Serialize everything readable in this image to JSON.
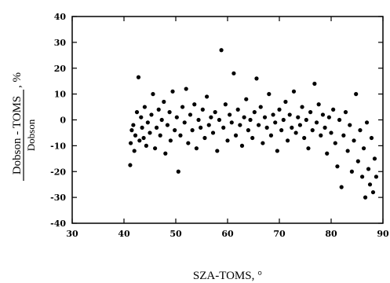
{
  "chart_data": {
    "type": "scatter",
    "xlabel": "SZA-TOMS, °",
    "ylabel": {
      "numerator": "Dobson - TOMS",
      "denominator": "Dobson",
      "unit": ", %"
    },
    "xlim": [
      30,
      90
    ],
    "ylim": [
      -40,
      40
    ],
    "x_ticks": [
      30,
      40,
      50,
      60,
      70,
      80,
      90
    ],
    "y_ticks": [
      40,
      30,
      20,
      10,
      0,
      -10,
      -20,
      -30,
      -40
    ],
    "grid": false,
    "legend": "none",
    "marker_color": "#000000",
    "series": [
      {
        "points": [
          [
            41.2,
            -17.5
          ],
          [
            41.3,
            -9
          ],
          [
            41.5,
            -4
          ],
          [
            41.8,
            -2
          ],
          [
            42,
            -12
          ],
          [
            42.2,
            -6
          ],
          [
            42.5,
            3
          ],
          [
            42.8,
            16.5
          ],
          [
            43,
            -8
          ],
          [
            43.3,
            1
          ],
          [
            43.5,
            -3
          ],
          [
            43.8,
            -7
          ],
          [
            44,
            5
          ],
          [
            44.3,
            -10
          ],
          [
            44.6,
            -1
          ],
          [
            45,
            -5
          ],
          [
            45.3,
            2
          ],
          [
            45.6,
            10
          ],
          [
            46,
            -11
          ],
          [
            46.3,
            -3
          ],
          [
            46.7,
            4
          ],
          [
            47,
            -6
          ],
          [
            47.3,
            0
          ],
          [
            47.7,
            7
          ],
          [
            48,
            -13
          ],
          [
            48.4,
            -2
          ],
          [
            48.8,
            3
          ],
          [
            49,
            -8
          ],
          [
            49.4,
            11
          ],
          [
            49.8,
            -4
          ],
          [
            50.2,
            1
          ],
          [
            50.5,
            -20
          ],
          [
            50.9,
            -6
          ],
          [
            51.3,
            5
          ],
          [
            51.7,
            -1
          ],
          [
            52,
            12
          ],
          [
            52.4,
            -9
          ],
          [
            52.8,
            2
          ],
          [
            53.2,
            -4
          ],
          [
            53.6,
            6
          ],
          [
            54,
            -11
          ],
          [
            54.4,
            0
          ],
          [
            54.8,
            -3
          ],
          [
            55.2,
            4
          ],
          [
            55.6,
            -7
          ],
          [
            56,
            9
          ],
          [
            56.4,
            -2
          ],
          [
            56.8,
            1
          ],
          [
            57.2,
            -5
          ],
          [
            57.6,
            3
          ],
          [
            58,
            -12
          ],
          [
            58.4,
            0
          ],
          [
            58.8,
            27
          ],
          [
            59.2,
            -3
          ],
          [
            59.6,
            6
          ],
          [
            60,
            -8
          ],
          [
            60.4,
            2
          ],
          [
            60.8,
            -1
          ],
          [
            61.2,
            18
          ],
          [
            61.6,
            -6
          ],
          [
            62,
            4
          ],
          [
            62.4,
            -2
          ],
          [
            62.8,
            -10
          ],
          [
            63.2,
            1
          ],
          [
            63.6,
            8
          ],
          [
            64,
            -4
          ],
          [
            64.4,
            0
          ],
          [
            64.8,
            -7
          ],
          [
            65.2,
            3
          ],
          [
            65.6,
            16
          ],
          [
            66,
            -2
          ],
          [
            66.4,
            5
          ],
          [
            66.8,
            -9
          ],
          [
            67.2,
            1
          ],
          [
            67.6,
            -3
          ],
          [
            68,
            10
          ],
          [
            68.4,
            -6
          ],
          [
            68.8,
            2
          ],
          [
            69.2,
            -1
          ],
          [
            69.6,
            -12
          ],
          [
            70,
            4
          ],
          [
            70.4,
            -4
          ],
          [
            70.8,
            0
          ],
          [
            71.2,
            7
          ],
          [
            71.6,
            -8
          ],
          [
            72,
            2
          ],
          [
            72.4,
            -3
          ],
          [
            72.8,
            11
          ],
          [
            73.2,
            -5
          ],
          [
            73.6,
            1
          ],
          [
            74,
            -2
          ],
          [
            74.4,
            5
          ],
          [
            74.8,
            -7
          ],
          [
            75.2,
            0
          ],
          [
            75.6,
            -11
          ],
          [
            76,
            3
          ],
          [
            76.4,
            -4
          ],
          [
            76.8,
            14
          ],
          [
            77.2,
            -1
          ],
          [
            77.6,
            6
          ],
          [
            78,
            -6
          ],
          [
            78.4,
            2
          ],
          [
            78.8,
            -3
          ],
          [
            79.2,
            -13
          ],
          [
            79.6,
            1
          ],
          [
            80,
            -5
          ],
          [
            80.4,
            4
          ],
          [
            80.8,
            -9
          ],
          [
            81.2,
            -18
          ],
          [
            81.6,
            0
          ],
          [
            82,
            -26
          ],
          [
            82.4,
            -6
          ],
          [
            82.8,
            3
          ],
          [
            83.2,
            -12
          ],
          [
            83.6,
            -2
          ],
          [
            84,
            -20
          ],
          [
            84.4,
            -8
          ],
          [
            84.8,
            10
          ],
          [
            85.2,
            -16
          ],
          [
            85.6,
            -4
          ],
          [
            86,
            -22
          ],
          [
            86.3,
            -11
          ],
          [
            86.6,
            -30
          ],
          [
            86.9,
            -1
          ],
          [
            87.2,
            -19
          ],
          [
            87.5,
            -25
          ],
          [
            87.8,
            -7
          ],
          [
            88.1,
            -28
          ],
          [
            88.4,
            -15
          ],
          [
            88.7,
            -22
          ]
        ]
      }
    ]
  }
}
